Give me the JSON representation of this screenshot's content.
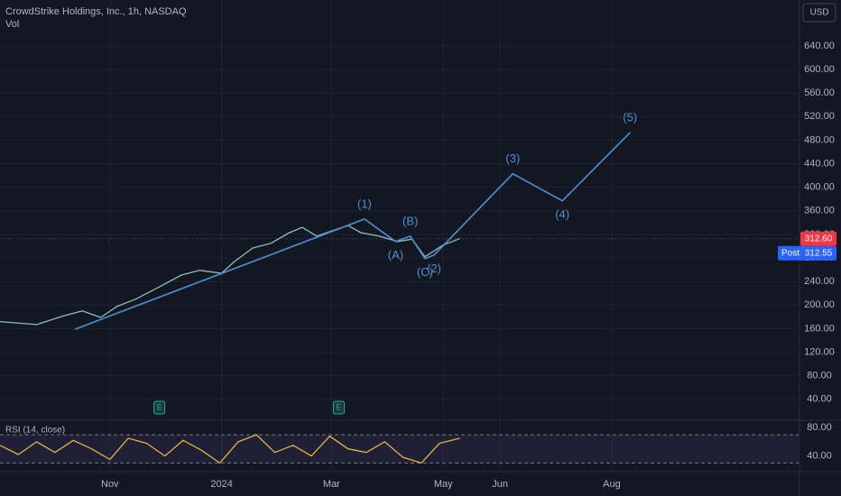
{
  "chart_data": [
    {
      "type": "line",
      "title": "CrowdStrike Holdings, Inc., 1h, NASDAQ",
      "subtitle": "Vol",
      "currency": "USD",
      "xlim": [
        -121,
        315
      ],
      "xticks": [
        {
          "value": -61,
          "label": "Nov"
        },
        {
          "value": 0,
          "label": "2024"
        },
        {
          "value": 60,
          "label": "Mar"
        },
        {
          "value": 121,
          "label": "May"
        },
        {
          "value": 152,
          "label": "Jun"
        },
        {
          "value": 213,
          "label": "Aug"
        }
      ],
      "ylim": [
        6,
        718
      ],
      "yticks": [
        {
          "value": 40,
          "label": "40.00"
        },
        {
          "value": 80,
          "label": "80.00"
        },
        {
          "value": 120,
          "label": "120.00"
        },
        {
          "value": 160,
          "label": "160.00"
        },
        {
          "value": 200,
          "label": "200.00"
        },
        {
          "value": 240,
          "label": "240.00"
        },
        {
          "value": 280,
          "label": "280.00"
        },
        {
          "value": 320,
          "label": "320.00"
        },
        {
          "value": 360,
          "label": "360.00"
        },
        {
          "value": 400,
          "label": "400.00"
        },
        {
          "value": 440,
          "label": "440.00"
        },
        {
          "value": 480,
          "label": "480.00"
        },
        {
          "value": 520,
          "label": "520.00"
        },
        {
          "value": 560,
          "label": "560.00"
        },
        {
          "value": 600,
          "label": "600.00"
        },
        {
          "value": 640,
          "label": "640.00"
        }
      ],
      "grid": true,
      "last_price": {
        "value": 312.6,
        "label": "312.60"
      },
      "post_price": {
        "value": 312.55,
        "label": "312.55"
      },
      "post_label": "Post",
      "events": [
        {
          "x": -34,
          "label": "E"
        },
        {
          "x": 64,
          "label": "E"
        }
      ],
      "series": [
        {
          "color": "#8fbfb0",
          "x": [
            -121,
            -101,
            -86,
            -76,
            -66,
            -57,
            -47,
            -34,
            -22,
            -12,
            0,
            7,
            17,
            27,
            37,
            44,
            52,
            62,
            69,
            76,
            86,
            96,
            104,
            111,
            116,
            121,
            126,
            130
          ],
          "values": [
            172,
            167,
            182,
            190,
            179,
            198,
            210,
            231,
            251,
            259,
            254,
            274,
            297,
            305,
            323,
            332,
            317,
            328,
            335,
            323,
            317,
            308,
            312,
            282,
            292,
            302,
            308,
            313
          ]
        },
        {
          "color": "#4a90d9",
          "x": [
            -80,
            78,
            95,
            103,
            111,
            116,
            159,
            186,
            223
          ],
          "values": [
            159,
            346,
            308,
            317,
            279,
            285,
            423,
            377,
            493
          ],
          "point_labels": [
            null,
            "(1)",
            "(A)",
            "(B)",
            "(C)",
            "(2)",
            "(3)",
            "(4)",
            "(5)"
          ]
        }
      ]
    },
    {
      "type": "line",
      "title": "RSI (14, close)",
      "xlim": [
        -121,
        315
      ],
      "ylim": [
        19,
        88
      ],
      "yticks": [
        {
          "value": 40,
          "label": "40.00"
        },
        {
          "value": 80,
          "label": "80.00"
        }
      ],
      "band": [
        30,
        70
      ],
      "series": [
        {
          "color": "#e3b341",
          "x": [
            -121,
            -111,
            -101,
            -91,
            -81,
            -71,
            -61,
            -51,
            -41,
            -31,
            -21,
            -11,
            -1,
            9,
            19,
            29,
            39,
            49,
            59,
            69,
            79,
            89,
            99,
            109,
            119,
            130
          ],
          "values": [
            55,
            42,
            60,
            45,
            62,
            50,
            35,
            65,
            58,
            40,
            62,
            48,
            30,
            60,
            70,
            45,
            55,
            40,
            68,
            50,
            45,
            60,
            38,
            30,
            58,
            65
          ]
        }
      ]
    }
  ]
}
